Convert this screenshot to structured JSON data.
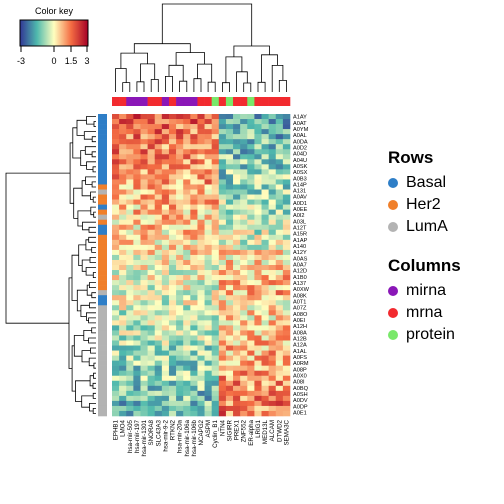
{
  "color_key": {
    "title": "Color key",
    "ticks": [
      "-3",
      "0",
      "1.5",
      "3"
    ]
  },
  "row_groups_title": "Rows",
  "col_groups_title": "Columns",
  "row_groups": [
    {
      "name": "Basal",
      "color": "#2e7ec7"
    },
    {
      "name": "Her2",
      "color": "#f07f2a"
    },
    {
      "name": "LumA",
      "color": "#b3b3b3"
    }
  ],
  "col_groups": [
    {
      "name": "mirna",
      "color": "#8a17b7"
    },
    {
      "name": "mrna",
      "color": "#f22a2f"
    },
    {
      "name": "protein",
      "color": "#79e86a"
    }
  ],
  "chart_data": {
    "type": "heatmap",
    "color_scale": [
      "#313695",
      "#4fb9ad",
      "#ffffbf",
      "#f46d43",
      "#a50026"
    ],
    "value_range": [
      -3,
      3
    ],
    "column_labels": [
      "EPHB1",
      "LMO4",
      "hsa-mir-505",
      "hsa-mir-197",
      "hsa-mir-1301",
      "SNORA8",
      "SLC43A3",
      "hsa-mir-9-2",
      "RTKN2",
      "hsa-mir-20a",
      "hsa-mir-106a",
      "hsa-mir-106b",
      "NCAPG2",
      "ASPM",
      "Cyclin_B1",
      "NTN4",
      "SIGIRR",
      "PREX1",
      "ZNF552",
      "ER-alpha",
      "LRIG1",
      "MED13L",
      "ALCAM",
      "DTWD2",
      "SEMA3C"
    ],
    "column_groups": [
      "mrna",
      "mrna",
      "mirna",
      "mirna",
      "mirna",
      "mrna",
      "mrna",
      "mirna",
      "mrna",
      "mirna",
      "mirna",
      "mirna",
      "mrna",
      "mrna",
      "protein",
      "mrna",
      "protein",
      "mrna",
      "mrna",
      "protein",
      "mrna",
      "mrna",
      "mrna",
      "mrna",
      "mrna"
    ],
    "row_labels": [
      "A1AY",
      "A0AT",
      "A0YM",
      "A0AL",
      "A0DA",
      "A0D2",
      "A04D",
      "A04U",
      "A0SK",
      "A0SX",
      "A0B3",
      "A14P",
      "A131",
      "A0AV",
      "A0D1",
      "A0EE",
      "A0I2",
      "A03L",
      "A12T",
      "A15R",
      "A1AP",
      "A140",
      "A12Y",
      "A0AS",
      "A0A7",
      "A12D",
      "A1B0",
      "A137",
      "A0XW",
      "A08K",
      "A0T1",
      "A07Z",
      "A08O",
      "A0EI",
      "A12H",
      "A08A",
      "A12B",
      "A12A",
      "A1AL",
      "A0FS",
      "A0RM",
      "A08P",
      "A0X0",
      "A08I",
      "A0BQ",
      "A0SH",
      "A0DV",
      "A0DP",
      "A0E1"
    ]
  }
}
